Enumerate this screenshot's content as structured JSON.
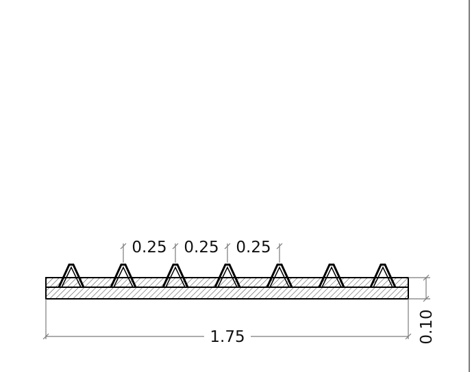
{
  "drawing": {
    "spacing_labels": [
      "0.25",
      "0.25",
      "0.25"
    ],
    "overall_length_label": "1.75",
    "thickness_label": "0.10"
  },
  "colors": {
    "ink": "#000000",
    "dimension": "#7a7a7a",
    "hatch": "#444444"
  }
}
